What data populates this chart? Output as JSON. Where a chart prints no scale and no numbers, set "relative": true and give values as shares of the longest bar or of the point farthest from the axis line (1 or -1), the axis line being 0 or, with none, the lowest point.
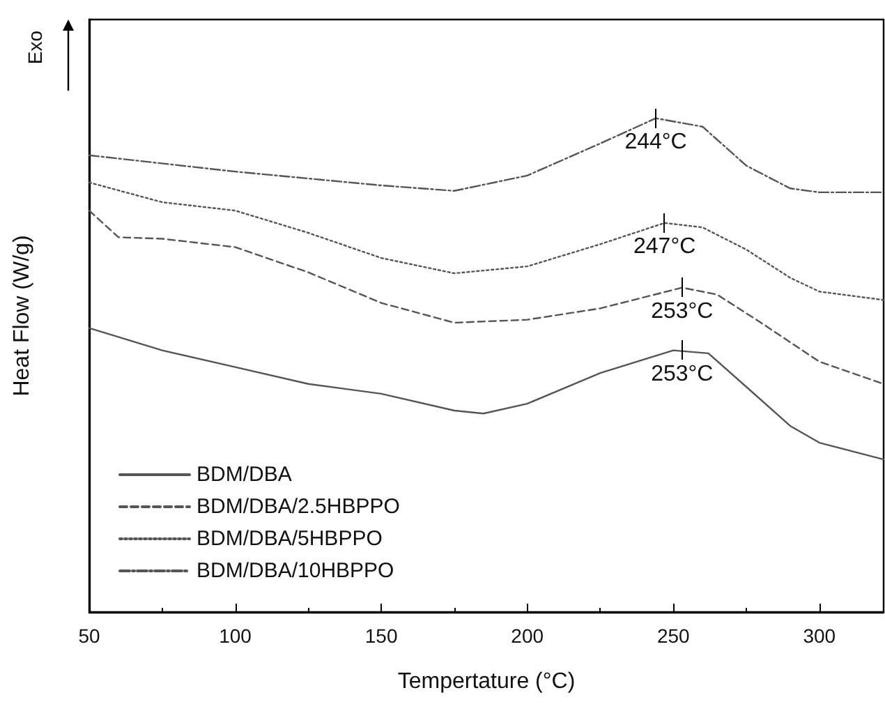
{
  "chart_data": {
    "type": "line",
    "relative": true,
    "xlabel": "Tempertature (°C)",
    "ylabel": "Heat Flow (W/g)",
    "xlim": [
      50,
      322
    ],
    "xticks": [
      50,
      100,
      150,
      200,
      250,
      300
    ],
    "grid": false,
    "legend": "bottom left",
    "marker": "none",
    "annotations": [
      "Exo",
      {
        "text": "244°C",
        "x": 244,
        "y": 1.0
      },
      {
        "text": "247°C",
        "x": 247,
        "y": 0.788
      },
      {
        "text": "253°C",
        "x": 253,
        "y": 0.657
      },
      {
        "text": "253°C",
        "x": 253,
        "y": 0.53
      }
    ],
    "series": [
      {
        "name": "BDM/DBA",
        "color": "#555555",
        "line_style": "solid",
        "x": [
          50,
          75,
          100,
          125,
          150,
          175,
          185,
          200,
          225,
          250,
          262,
          275,
          290,
          300,
          322
        ],
        "values": [
          0.575,
          0.53,
          0.496,
          0.462,
          0.442,
          0.408,
          0.402,
          0.422,
          0.484,
          0.53,
          0.524,
          0.456,
          0.377,
          0.343,
          0.309
        ]
      },
      {
        "name": "BDM/DBA/2.5HBPPO",
        "color": "#555555",
        "line_style": "dashed",
        "x": [
          50,
          60,
          75,
          100,
          125,
          150,
          175,
          200,
          225,
          253,
          265,
          280,
          300,
          322
        ],
        "values": [
          0.813,
          0.759,
          0.756,
          0.739,
          0.688,
          0.626,
          0.586,
          0.592,
          0.615,
          0.657,
          0.643,
          0.586,
          0.507,
          0.462
        ]
      },
      {
        "name": "BDM/DBA/5HBPPO",
        "color": "#555555",
        "line_style": "dotted",
        "x": [
          50,
          75,
          100,
          125,
          150,
          175,
          200,
          225,
          247,
          260,
          275,
          290,
          300,
          322
        ],
        "values": [
          0.87,
          0.83,
          0.813,
          0.768,
          0.717,
          0.686,
          0.7,
          0.745,
          0.788,
          0.779,
          0.734,
          0.677,
          0.649,
          0.632
        ]
      },
      {
        "name": "BDM/DBA/10HBPPO",
        "color": "#555555",
        "line_style": "dashdot",
        "x": [
          50,
          100,
          150,
          175,
          200,
          225,
          244,
          260,
          275,
          290,
          300,
          322
        ],
        "values": [
          0.925,
          0.892,
          0.864,
          0.853,
          0.884,
          0.949,
          1.0,
          0.983,
          0.904,
          0.858,
          0.85,
          0.85
        ]
      }
    ]
  }
}
